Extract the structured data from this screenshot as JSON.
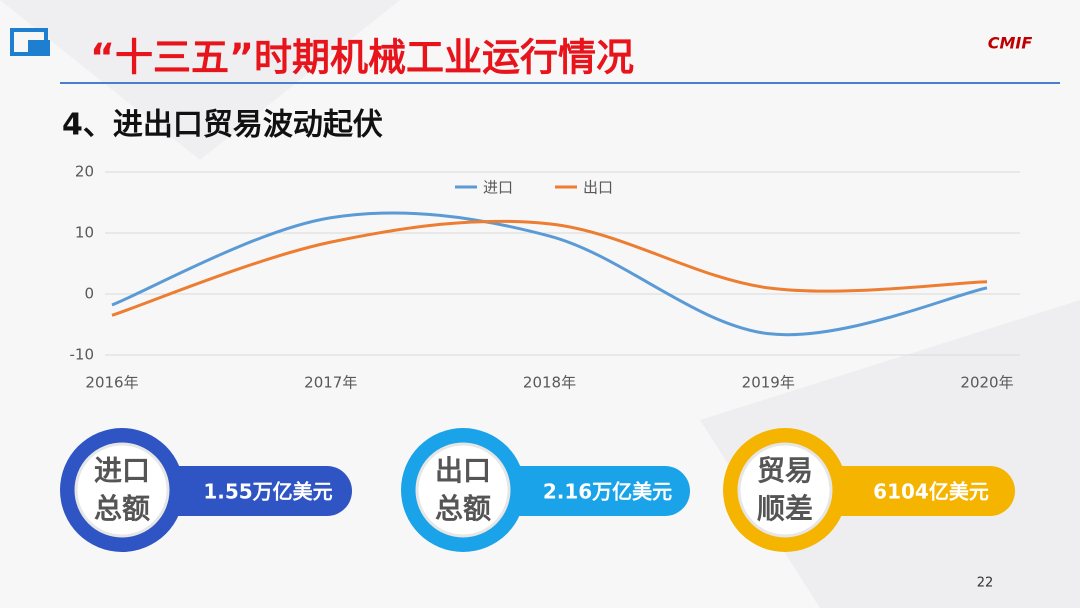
{
  "header": {
    "title": "“十三五”时期机械工业运行情况",
    "logo": "CMIF"
  },
  "subtitle": "4、进出口贸易波动起伏",
  "chart_data": {
    "type": "line",
    "categories": [
      "2016年",
      "2017年",
      "2018年",
      "2019年",
      "2020年"
    ],
    "series": [
      {
        "name": "进口",
        "color": "#5b9bd5",
        "values": [
          -1.8,
          12.5,
          9.5,
          -6.5,
          1
        ]
      },
      {
        "name": "出口",
        "color": "#ed7d31",
        "values": [
          -3.5,
          8.5,
          11.5,
          1,
          2
        ]
      }
    ],
    "ylim": [
      -10,
      20
    ],
    "yticks": [
      -10,
      0,
      10,
      20
    ],
    "grid": true,
    "smooth": true,
    "legend": "top"
  },
  "badges": [
    {
      "label": [
        "进口",
        "总额"
      ],
      "value": "1.55万亿美元",
      "color": "#2f55c4"
    },
    {
      "label": [
        "出口",
        "总额"
      ],
      "value": "2.16万亿美元",
      "color": "#1aa3e8"
    },
    {
      "label": [
        "贸易",
        "顺差"
      ],
      "value": "6104亿美元",
      "color": "#f5b400"
    }
  ],
  "page_number": "22"
}
